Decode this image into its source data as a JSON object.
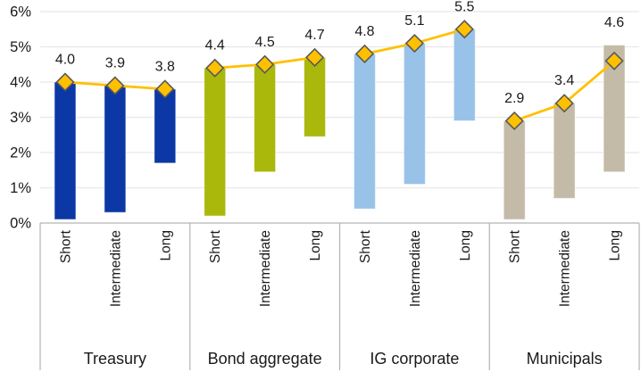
{
  "chart_data": {
    "type": "bar",
    "subtype": "floating-range-bars-with-line-markers",
    "title": "",
    "xlabel": "",
    "ylabel": "",
    "grid": true,
    "legend_position": "none",
    "y_axis": {
      "min": 0,
      "max": 6,
      "tick_step": 1,
      "tick_labels": [
        "0%",
        "1%",
        "2%",
        "3%",
        "4%",
        "5%",
        "6%"
      ]
    },
    "colors": {
      "gridline": "#E8E8E8",
      "axis": "#B3B3B3",
      "divider": "#B3B3B3",
      "text": "#1A1A1A",
      "line": "#FFC000",
      "marker_fill": "#FFC000",
      "marker_stroke": "#595959"
    },
    "marker": {
      "shape": "diamond"
    },
    "groups": [
      {
        "label": "Treasury",
        "color": "#0B38A5",
        "bars": [
          {
            "maturity": "Short",
            "range_low": 0.1,
            "range_high": 4.0,
            "current": 4.0,
            "current_label": "4.0"
          },
          {
            "maturity": "Intermediate",
            "range_low": 0.3,
            "range_high": 3.9,
            "current": 3.9,
            "current_label": "3.9"
          },
          {
            "maturity": "Long",
            "range_low": 1.7,
            "range_high": 3.8,
            "current": 3.8,
            "current_label": "3.8"
          }
        ]
      },
      {
        "label": "Bond aggregate",
        "color": "#A9B80B",
        "bars": [
          {
            "maturity": "Short",
            "range_low": 0.2,
            "range_high": 4.4,
            "current": 4.4,
            "current_label": "4.4"
          },
          {
            "maturity": "Intermediate",
            "range_low": 1.45,
            "range_high": 4.5,
            "current": 4.5,
            "current_label": "4.5"
          },
          {
            "maturity": "Long",
            "range_low": 2.45,
            "range_high": 4.7,
            "current": 4.7,
            "current_label": "4.7"
          }
        ]
      },
      {
        "label": "IG corporate",
        "color": "#99C2E8",
        "bars": [
          {
            "maturity": "Short",
            "range_low": 0.4,
            "range_high": 4.8,
            "current": 4.8,
            "current_label": "4.8"
          },
          {
            "maturity": "Intermediate",
            "range_low": 1.1,
            "range_high": 5.1,
            "current": 5.1,
            "current_label": "5.1"
          },
          {
            "maturity": "Long",
            "range_low": 2.9,
            "range_high": 5.5,
            "current": 5.5,
            "current_label": "5.5"
          }
        ]
      },
      {
        "label": "Municipals",
        "color": "#C4BAA8",
        "bars": [
          {
            "maturity": "Short",
            "range_low": 0.1,
            "range_high": 2.9,
            "current": 2.9,
            "current_label": "2.9"
          },
          {
            "maturity": "Intermediate",
            "range_low": 0.7,
            "range_high": 3.4,
            "current": 3.4,
            "current_label": "3.4"
          },
          {
            "maturity": "Long",
            "range_low": 1.45,
            "range_high": 5.05,
            "current": 4.6,
            "current_label": "4.6"
          }
        ]
      }
    ]
  }
}
